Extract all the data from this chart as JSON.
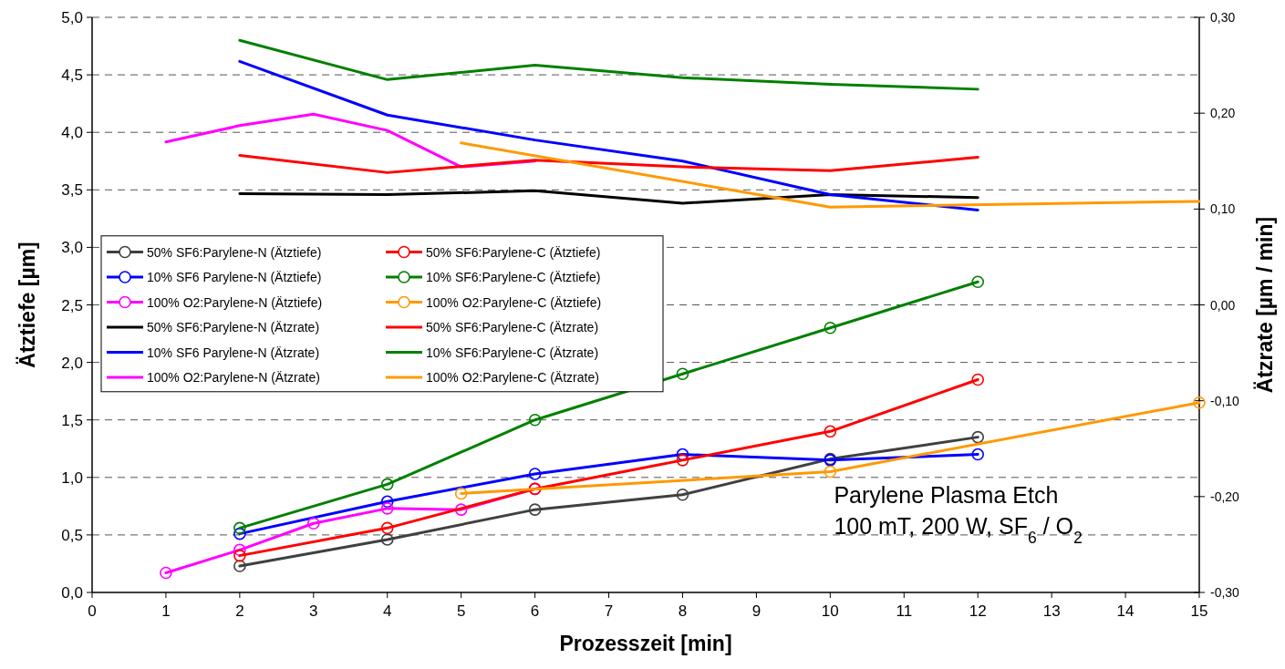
{
  "chart_data": {
    "type": "line",
    "xlabel": "Prozesszeit [min]",
    "ylabel": "Ätztiefe [µm]",
    "y2label": "Ätzrate [µm / min]",
    "xlim": [
      0,
      15
    ],
    "xticks": [
      0,
      1,
      2,
      3,
      4,
      5,
      6,
      7,
      8,
      9,
      10,
      11,
      12,
      13,
      14,
      15
    ],
    "ylim": [
      0,
      5
    ],
    "yticks": [
      {
        "value": 0,
        "label": "0,0"
      },
      {
        "value": 0.5,
        "label": "0,5"
      },
      {
        "value": 1,
        "label": "1,0"
      },
      {
        "value": 1.5,
        "label": "1,5"
      },
      {
        "value": 2,
        "label": "2,0"
      },
      {
        "value": 2.5,
        "label": "2,5"
      },
      {
        "value": 3,
        "label": "3,0"
      },
      {
        "value": 3.5,
        "label": "3,5"
      },
      {
        "value": 4,
        "label": "4,0"
      },
      {
        "value": 4.5,
        "label": "4,5"
      },
      {
        "value": 5,
        "label": "5,0"
      }
    ],
    "y2lim": [
      -0.3,
      0.3
    ],
    "y2ticks": [
      {
        "value": -0.3,
        "label": "-0,30"
      },
      {
        "value": -0.2,
        "label": "-0,20"
      },
      {
        "value": -0.1,
        "label": "-0,10"
      },
      {
        "value": 0,
        "label": "0,00"
      },
      {
        "value": 0.1,
        "label": "0,10"
      },
      {
        "value": 0.2,
        "label": "0,20"
      },
      {
        "value": 0.3,
        "label": "0,30"
      }
    ],
    "grid": "y",
    "legend": "left",
    "annotations": [
      "Parylene Plasma Etch",
      "100 mT, 200 W, SF$_{6}$ / O$_{2}$"
    ],
    "series": [
      {
        "name": "50% SF6:Parylene-N (Ätztiefe)",
        "color": "#404040",
        "marker": "circle",
        "x": [
          2,
          4,
          6,
          8,
          10,
          12
        ],
        "values": [
          0.23,
          0.46,
          0.72,
          0.85,
          1.16,
          1.35
        ]
      },
      {
        "name": "10% SF6 Parylene-N (Ätztiefe)",
        "color": "#0000ff",
        "marker": "circle",
        "x": [
          2,
          4,
          6,
          8,
          10,
          12
        ],
        "values": [
          0.51,
          0.79,
          1.03,
          1.2,
          1.15,
          1.2
        ]
      },
      {
        "name": "100% O2:Parylene-N (Ätztiefe)",
        "color": "#ff00ff",
        "marker": "circle",
        "x": [
          1,
          2,
          3,
          4,
          5,
          6
        ],
        "values": [
          0.17,
          0.37,
          0.6,
          0.73,
          0.72,
          0.9
        ]
      },
      {
        "name": "50% SF6:Parylene-N (Ätzrate)",
        "color": "#000000",
        "marker": "none",
        "axis": "y2",
        "x": [
          2,
          4,
          6,
          8,
          10,
          12
        ],
        "values": [
          0.116,
          0.115,
          0.119,
          0.106,
          0.115,
          0.112
        ]
      },
      {
        "name": "10% SF6 Parylene-N (Ätzrate)",
        "color": "#0000ff",
        "marker": "none",
        "axis": "y2",
        "x": [
          2,
          4,
          6,
          8,
          10,
          12
        ],
        "values": [
          0.254,
          0.198,
          0.172,
          0.15,
          0.115,
          0.099
        ]
      },
      {
        "name": "100% O2:Parylene-N (Ätzrate)",
        "color": "#ff00ff",
        "marker": "none",
        "axis": "y2",
        "x": [
          1,
          2,
          3,
          4,
          5,
          6
        ],
        "values": [
          0.17,
          0.187,
          0.199,
          0.182,
          0.144,
          0.15
        ]
      },
      {
        "name": "50% SF6:Parylene-C (Ätztiefe)",
        "color": "#ff0000",
        "marker": "circle",
        "x": [
          2,
          4,
          6,
          8,
          10,
          12
        ],
        "values": [
          0.32,
          0.56,
          0.9,
          1.15,
          1.4,
          1.85
        ]
      },
      {
        "name": "10% SF6:Parylene-C (Ätztiefe)",
        "color": "#008000",
        "marker": "circle",
        "x": [
          2,
          4,
          6,
          8,
          10,
          12
        ],
        "values": [
          0.56,
          0.94,
          1.5,
          1.9,
          2.3,
          2.7
        ]
      },
      {
        "name": "100% O2:Parylene-C (Ätztiefe)",
        "color": "#ff9900",
        "marker": "circle",
        "x": [
          5,
          10,
          15
        ],
        "values": [
          0.86,
          1.05,
          1.65
        ]
      },
      {
        "name": "50% SF6:Parylene-C (Ätzrate)",
        "color": "#ff0000",
        "marker": "none",
        "axis": "y2",
        "x": [
          2,
          4,
          6,
          8,
          10,
          12
        ],
        "values": [
          0.156,
          0.138,
          0.151,
          0.144,
          0.14,
          0.154
        ]
      },
      {
        "name": "10% SF6:Parylene-C (Ätzrate)",
        "color": "#008000",
        "marker": "none",
        "axis": "y2",
        "x": [
          2,
          4,
          6,
          8,
          10,
          12
        ],
        "values": [
          0.276,
          0.235,
          0.25,
          0.237,
          0.23,
          0.225
        ]
      },
      {
        "name": "100% O2:Parylene-C (Ätzrate)",
        "color": "#ff9900",
        "marker": "none",
        "axis": "y2",
        "x": [
          5,
          10,
          15
        ],
        "values": [
          0.169,
          0.102,
          0.108
        ]
      }
    ]
  }
}
